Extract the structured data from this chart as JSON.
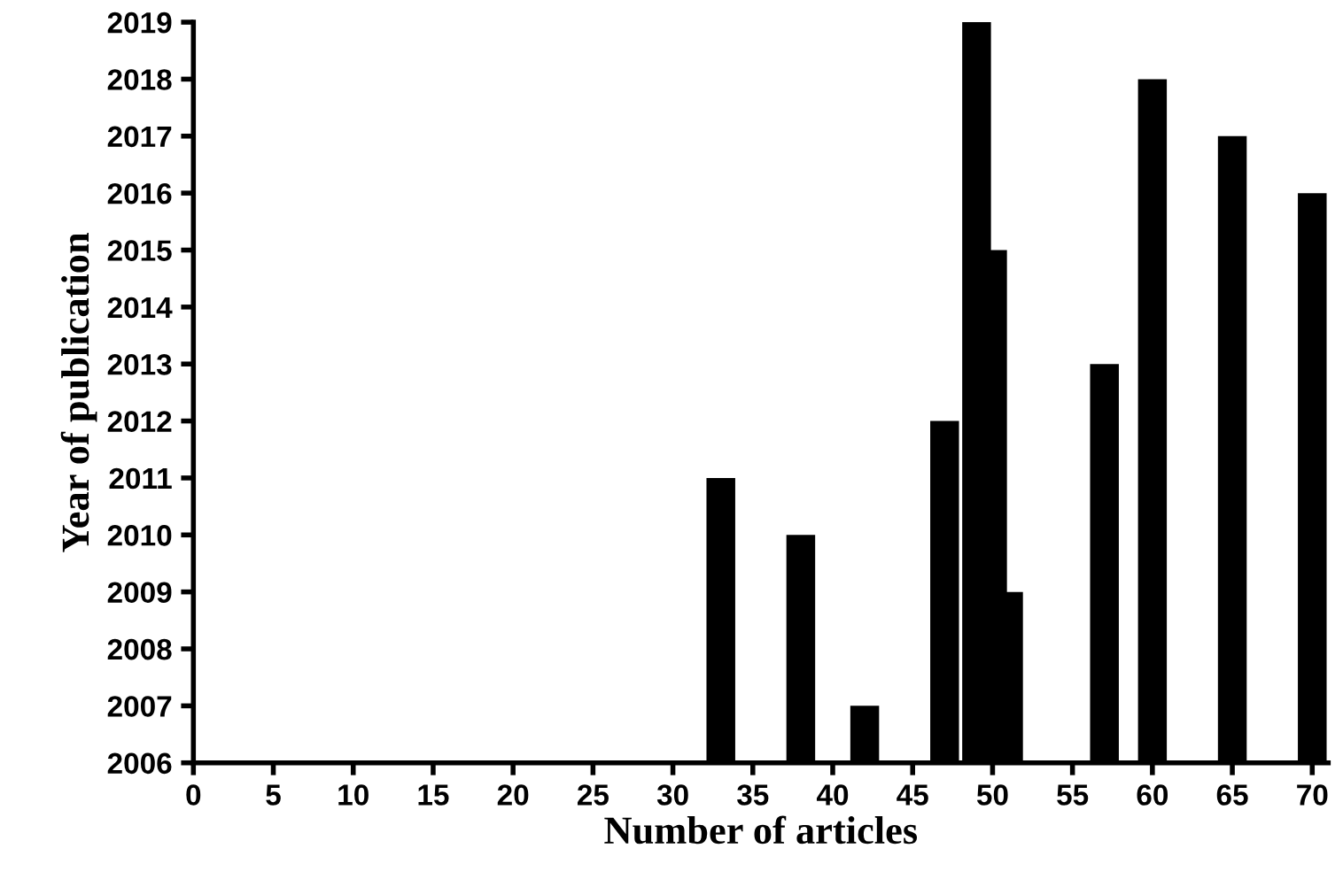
{
  "chart_data": {
    "type": "bar",
    "xlabel": "Number of articles",
    "ylabel": "Year of publication",
    "x": [
      33,
      38,
      42,
      44,
      47,
      49,
      50,
      51,
      57,
      60,
      65,
      70
    ],
    "values": [
      2011,
      2010,
      2007,
      2006,
      2012,
      2019,
      2015,
      2009,
      2013,
      2018,
      2017,
      2016
    ],
    "color": "#000000",
    "xlim": [
      0,
      71
    ],
    "xticks": [
      0,
      5,
      10,
      15,
      20,
      25,
      30,
      35,
      40,
      45,
      50,
      55,
      60,
      65,
      70
    ],
    "ylim": [
      2006,
      2019
    ],
    "yticks": [
      2006,
      2007,
      2008,
      2009,
      2010,
      2011,
      2012,
      2013,
      2014,
      2015,
      2016,
      2017,
      2018,
      2019
    ],
    "grid": false,
    "legend": false
  }
}
